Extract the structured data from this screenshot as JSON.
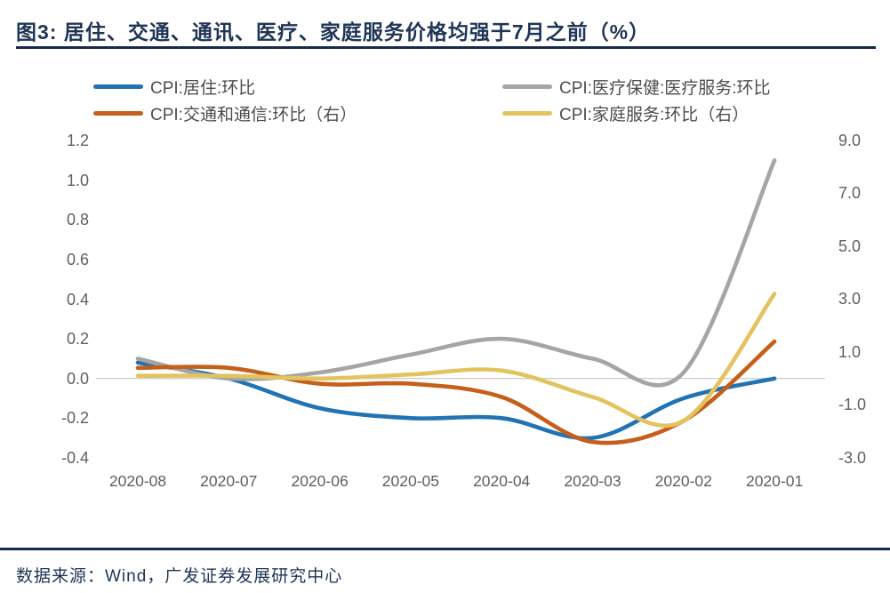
{
  "figure": {
    "title": "图3: 居住、交通、通讯、医疗、家庭服务价格均强于7月之前（%）"
  },
  "footer": {
    "source": "数据来源：Wind，广发证券发展研究中心"
  },
  "palette": {
    "title_navy": "#1F3556",
    "divider_navy": "#17294A",
    "axis_text": "#5F5F5F",
    "zero_line": "#CFCFCF",
    "background": "#FFFFFF"
  },
  "chart_data": {
    "type": "line",
    "smoothing": "spline",
    "title": "图3: 居住、交通、通讯、医疗、家庭服务价格均强于7月之前（%）",
    "categories": [
      "2020-08",
      "2020-07",
      "2020-06",
      "2020-05",
      "2020-04",
      "2020-03",
      "2020-02",
      "2020-01"
    ],
    "left_axis": {
      "ticks": [
        "1.2",
        "1.0",
        "0.8",
        "0.6",
        "0.4",
        "0.2",
        "0.0",
        "-0.2",
        "-0.4"
      ],
      "range": [
        -0.4,
        1.2
      ]
    },
    "right_axis": {
      "ticks": [
        "9.0",
        "7.0",
        "5.0",
        "3.0",
        "1.0",
        "-1.0",
        "-3.0"
      ],
      "range": [
        -3.0,
        9.0
      ]
    },
    "grid": "zero-line-only",
    "legend_position": "top",
    "legend_columns": 2,
    "series": [
      {
        "name": "CPI:居住:环比",
        "axis": "left",
        "color": "#2173B4",
        "values": [
          0.08,
          0.0,
          -0.15,
          -0.2,
          -0.2,
          -0.3,
          -0.1,
          0.0
        ]
      },
      {
        "name": "CPI:医疗保健:医疗服务:环比",
        "axis": "left",
        "color": "#A5A5A5",
        "values": [
          0.1,
          0.0,
          0.03,
          0.12,
          0.2,
          0.1,
          0.03,
          1.1
        ]
      },
      {
        "name": "CPI:交通和通信:环比（右）",
        "axis": "right",
        "color": "#C55F1B",
        "values": [
          0.4,
          0.4,
          -0.2,
          -0.2,
          -0.7,
          -2.4,
          -1.6,
          1.4
        ]
      },
      {
        "name": "CPI:家庭服务:环比（右）",
        "axis": "right",
        "color": "#E3C35F",
        "values": [
          0.1,
          0.1,
          0.0,
          0.15,
          0.3,
          -0.7,
          -1.6,
          3.2
        ]
      }
    ]
  }
}
